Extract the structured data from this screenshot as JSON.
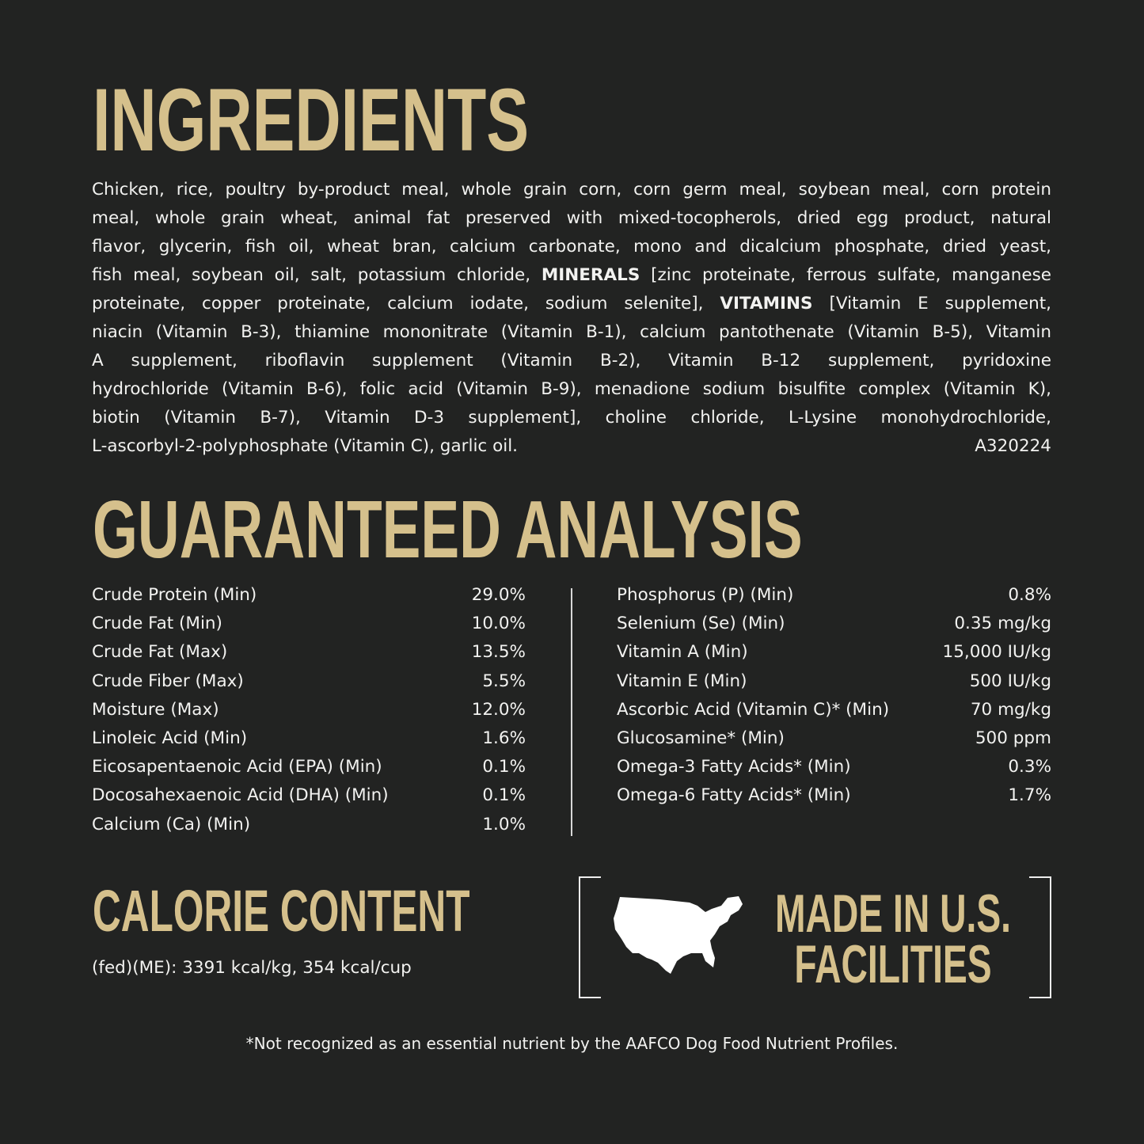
{
  "ingredients": {
    "title": "INGREDIENTS",
    "lines": [
      [
        {
          "t": "Chicken, rice, poultry by-product meal, whole grain corn, corn germ meal, soybean meal, corn protein"
        }
      ],
      [
        {
          "t": "meal, whole grain wheat, animal fat preserved with mixed-tocopherols, dried egg product, natural"
        }
      ],
      [
        {
          "t": "flavor, glycerin, fish oil, wheat bran, calcium carbonate, mono and dicalcium phosphate, dried yeast,"
        }
      ],
      [
        {
          "t": "fish meal, soybean oil, salt, potassium chloride, "
        },
        {
          "t": "MINERALS",
          "b": true
        },
        {
          "t": " [zinc proteinate, ferrous sulfate, manganese"
        }
      ],
      [
        {
          "t": "proteinate, copper proteinate, calcium iodate, sodium selenite], "
        },
        {
          "t": "VITAMINS",
          "b": true
        },
        {
          "t": " [Vitamin E supplement,"
        }
      ],
      [
        {
          "t": "niacin (Vitamin B-3), thiamine mononitrate (Vitamin B-1), calcium pantothenate (Vitamin B-5), Vitamin"
        }
      ],
      [
        {
          "t": "A supplement, riboflavin supplement (Vitamin B-2), Vitamin B-12 supplement, pyridoxine"
        }
      ],
      [
        {
          "t": "hydrochloride (Vitamin B-6), folic acid (Vitamin B-9), menadione sodium bisulfite complex (Vitamin K),"
        }
      ],
      [
        {
          "t": "biotin (Vitamin B-7), Vitamin D-3 supplement], choline chloride, L-Lysine monohydrochloride,"
        }
      ]
    ],
    "last_line": "L-ascorbyl-2-polyphosphate (Vitamin C), garlic oil.",
    "code": "A320224"
  },
  "analysis": {
    "title": "GUARANTEED ANALYSIS",
    "left": [
      {
        "name": "Crude Protein (Min)",
        "value": "29.0%"
      },
      {
        "name": "Crude Fat (Min)",
        "value": "10.0%"
      },
      {
        "name": "Crude Fat (Max)",
        "value": "13.5%"
      },
      {
        "name": "Crude Fiber (Max)",
        "value": "5.5%"
      },
      {
        "name": "Moisture (Max)",
        "value": "12.0%"
      },
      {
        "name": "Linoleic Acid (Min)",
        "value": "1.6%"
      },
      {
        "name": "Eicosapentaenoic Acid (EPA) (Min)",
        "value": "0.1%"
      },
      {
        "name": "Docosahexaenoic Acid (DHA) (Min)",
        "value": "0.1%"
      },
      {
        "name": "Calcium (Ca) (Min)",
        "value": "1.0%"
      }
    ],
    "right": [
      {
        "name": "Phosphorus (P) (Min)",
        "value": "0.8%"
      },
      {
        "name": "Selenium (Se) (Min)",
        "value": "0.35 mg/kg"
      },
      {
        "name": "Vitamin A (Min)",
        "value": "15,000 IU/kg"
      },
      {
        "name": "Vitamin E (Min)",
        "value": "500 IU/kg"
      },
      {
        "name": "Ascorbic Acid (Vitamin C)* (Min)",
        "value": "70 mg/kg"
      },
      {
        "name": "Glucosamine* (Min)",
        "value": "500 ppm"
      },
      {
        "name": "Omega-3 Fatty Acids* (Min)",
        "value": "0.3%"
      },
      {
        "name": "Omega-6 Fatty Acids* (Min)",
        "value": "1.7%"
      }
    ]
  },
  "calorie": {
    "title": "CALORIE CONTENT",
    "text": "(fed)(ME): 3391 kcal/kg, 354 kcal/cup"
  },
  "made_in": {
    "line1": "MADE IN U.S.",
    "line2": "FACILITIES",
    "icon": "us-map-icon"
  },
  "footnote": "*Not recognized as an essential nutrient by the AAFCO Dog Food Nutrient Profiles.",
  "colors": {
    "background": "#222322",
    "heading": "#d5c08c",
    "text": "#f2f2f0"
  }
}
